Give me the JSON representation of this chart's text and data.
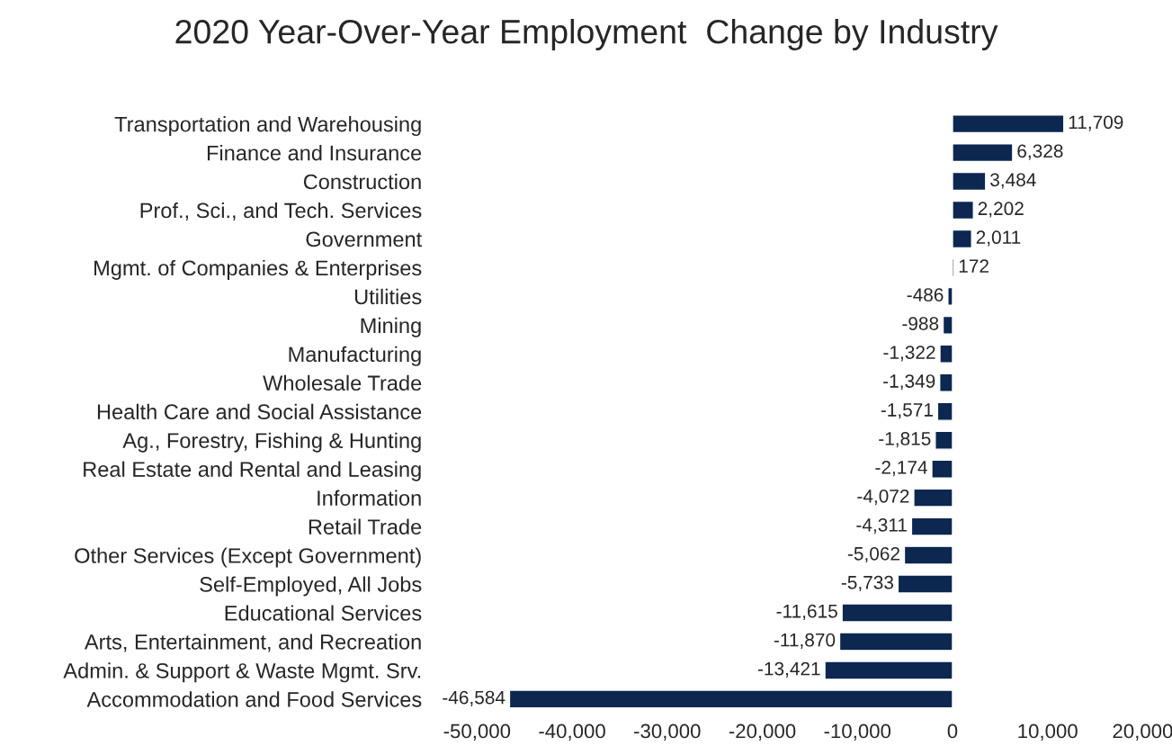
{
  "chart_data": {
    "type": "bar",
    "orientation": "horizontal",
    "title": "2020 Year-Over-Year Employment  Change by Industry",
    "categories": [
      "Transportation and Warehousing",
      "Finance and Insurance",
      "Construction",
      "Prof., Sci., and Tech. Services",
      "Government",
      "Mgmt. of Companies & Enterprises",
      "Utilities",
      "Mining",
      "Manufacturing",
      "Wholesale Trade",
      "Health Care and Social Assistance",
      "Ag., Forestry, Fishing & Hunting",
      "Real Estate and Rental and Leasing",
      "Information",
      "Retail Trade",
      "Other Services (Except Government)",
      "Self-Employed, All Jobs",
      "Educational Services",
      "Arts, Entertainment, and Recreation",
      "Admin. & Support & Waste Mgmt. Srv.",
      "Accommodation and Food Services"
    ],
    "values": [
      11709,
      6328,
      3484,
      2202,
      2011,
      172,
      -486,
      -988,
      -1322,
      -1349,
      -1571,
      -1815,
      -2174,
      -4072,
      -4311,
      -5062,
      -5733,
      -11615,
      -11870,
      -13421,
      -46584
    ],
    "value_labels": [
      "11,709",
      "6,328",
      "3,484",
      "2,202",
      "2,011",
      "172",
      "-486",
      "-988",
      "-1,322",
      "-1,349",
      "-1,571",
      "-1,815",
      "-2,174",
      "-4,072",
      "-4,311",
      "-5,062",
      "-5,733",
      "-11,615",
      "-11,870",
      "-13,421",
      "-46,584"
    ],
    "color": "#0c2750",
    "xlim": [
      -50000,
      20000
    ],
    "xticks": [
      {
        "value": -50000,
        "label": "-50,000"
      },
      {
        "value": -40000,
        "label": "-40,000"
      },
      {
        "value": -30000,
        "label": "-30,000"
      },
      {
        "value": -20000,
        "label": "-20,000"
      },
      {
        "value": -10000,
        "label": "-10,000"
      },
      0,
      {
        "value": 10000,
        "label": "10,000"
      },
      {
        "value": 20000,
        "label": "20,000"
      }
    ]
  }
}
